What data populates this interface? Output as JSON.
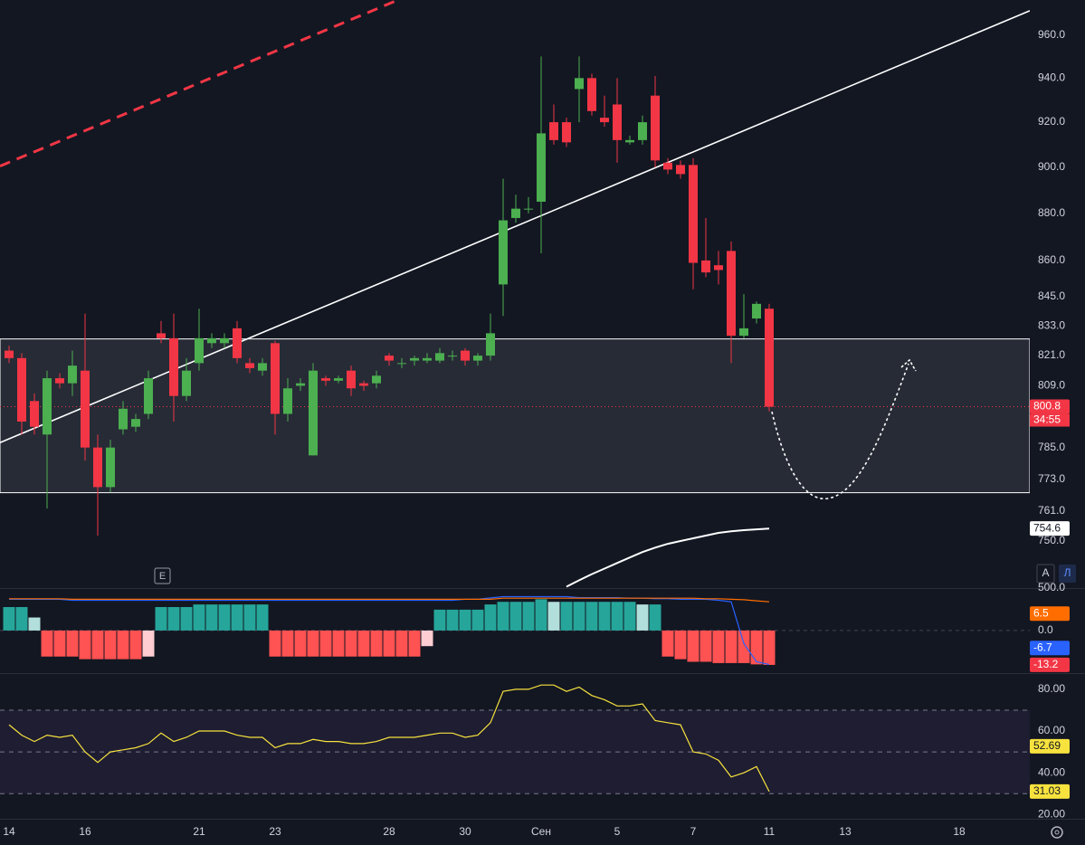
{
  "chart_data": [
    {
      "type": "candlestick",
      "xlim": [
        -0.714,
        80.571
      ],
      "xticks": [
        {
          "value": 0,
          "label": "14"
        },
        {
          "value": 6,
          "label": "16"
        },
        {
          "value": 15,
          "label": "21"
        },
        {
          "value": 21,
          "label": "23"
        },
        {
          "value": 30,
          "label": "28"
        },
        {
          "value": 36,
          "label": "30"
        },
        {
          "value": 42,
          "label": "Сен"
        },
        {
          "value": 48,
          "label": "5"
        },
        {
          "value": 54,
          "label": "7"
        },
        {
          "value": 60,
          "label": "11"
        },
        {
          "value": 66,
          "label": "13"
        },
        {
          "value": 75,
          "label": "18"
        }
      ],
      "ylim": [
        733,
        976.5
      ],
      "log_scale": true,
      "yticks": [
        {
          "value": 960,
          "label": "960.0"
        },
        {
          "value": 940,
          "label": "940.0"
        },
        {
          "value": 920,
          "label": "920.0"
        },
        {
          "value": 900,
          "label": "900.0"
        },
        {
          "value": 880,
          "label": "880.0"
        },
        {
          "value": 860,
          "label": "860.0"
        },
        {
          "value": 845,
          "label": "845.0"
        },
        {
          "value": 833,
          "label": "833.0"
        },
        {
          "value": 821,
          "label": "821.0"
        },
        {
          "value": 809,
          "label": "809.0"
        },
        {
          "value": 785,
          "label": "785.0"
        },
        {
          "value": 773,
          "label": "773.0"
        },
        {
          "value": 761,
          "label": "761.0"
        },
        {
          "value": 750,
          "label": "750.0"
        }
      ],
      "open": [
        823,
        820,
        803,
        790,
        812,
        810,
        815,
        785,
        770,
        792,
        793,
        798,
        830,
        828,
        805,
        818,
        826,
        826,
        832,
        818,
        815,
        826,
        798,
        809,
        782,
        812,
        811,
        815,
        810,
        810,
        821,
        818,
        819,
        819,
        819,
        821,
        823,
        819,
        821,
        850,
        878,
        882,
        885,
        920,
        920,
        935,
        940,
        922,
        928,
        911,
        912,
        932,
        902,
        901,
        901,
        860,
        858,
        864,
        829,
        836,
        840
      ],
      "high": [
        825,
        822,
        806,
        815,
        814,
        823,
        838,
        790,
        788,
        803,
        798,
        815,
        835,
        838,
        820,
        840,
        830,
        830,
        835,
        820,
        820,
        827,
        812,
        812,
        818,
        813,
        813,
        817,
        811,
        815,
        822,
        820,
        821,
        822,
        824,
        823,
        824,
        822,
        838,
        895,
        888,
        887,
        950,
        928,
        922,
        950,
        942,
        932,
        940,
        914,
        923,
        941,
        904,
        903,
        904,
        878,
        864,
        868,
        846,
        843,
        842
      ],
      "low": [
        818,
        790,
        790,
        762,
        808,
        805,
        780,
        752,
        768,
        790,
        791,
        796,
        826,
        795,
        803,
        815,
        824,
        824,
        818,
        814,
        813,
        790,
        795,
        807,
        782,
        809,
        810,
        805,
        807,
        808,
        817,
        816,
        817,
        818,
        818,
        819,
        817,
        817,
        819,
        837,
        876,
        880,
        863,
        910,
        909,
        920,
        923,
        918,
        902,
        910,
        910,
        900,
        897,
        895,
        848,
        853,
        850,
        818,
        828,
        834,
        799
      ],
      "close": [
        820,
        795,
        793,
        812,
        810,
        817,
        785,
        770,
        785,
        800,
        796,
        812,
        828,
        805,
        815,
        828,
        828,
        828,
        820,
        816,
        818,
        798,
        808,
        810,
        815,
        811,
        812,
        808,
        809,
        813,
        819,
        818,
        820,
        820,
        822,
        821,
        819,
        821,
        830,
        877,
        882,
        882,
        915,
        912,
        911,
        940,
        925,
        920,
        912,
        912,
        920,
        903,
        899,
        897,
        859,
        855,
        856,
        829,
        832,
        842,
        800.8
      ],
      "up_color": "#4caf50",
      "down_color": "#f23645",
      "last_price": 800.8,
      "countdown": "34:55",
      "moving_average": {
        "color": "#ffffff",
        "values": [
          null,
          null,
          null,
          null,
          null,
          null,
          null,
          null,
          null,
          null,
          null,
          null,
          null,
          null,
          null,
          null,
          null,
          null,
          null,
          null,
          null,
          null,
          null,
          null,
          null,
          null,
          null,
          null,
          null,
          null,
          null,
          null,
          null,
          null,
          null,
          null,
          null,
          null,
          null,
          null,
          null,
          null,
          null,
          null,
          733.5,
          735.8,
          738,
          740,
          742,
          744,
          746,
          747.6,
          749,
          750,
          751,
          752,
          753,
          753.6,
          754,
          754.3,
          754.6
        ]
      },
      "trendlines": [
        {
          "color": "#ffffff",
          "dashed": false,
          "x": [
            -0.714,
            80.571
          ],
          "y": [
            786.9,
            971.4
          ]
        },
        {
          "color": "#f23645",
          "dashed": true,
          "x": [
            -0.714,
            30.7
          ],
          "y": [
            900.5,
            976.5
          ]
        }
      ],
      "zone": {
        "x": [
          -0.714,
          80.571
        ],
        "y": [
          767.9,
          827.7
        ]
      },
      "event_marker": "E"
    },
    {
      "type": "histogram",
      "ylim": [
        -16,
        15.6
      ],
      "yticks": [
        {
          "value": 0,
          "label": "0.0"
        }
      ],
      "values": [
        9,
        9,
        5,
        -10,
        -10,
        -10,
        -11,
        -11,
        -11,
        -11,
        -11,
        -10,
        9,
        9,
        9,
        10,
        10,
        10,
        10,
        10,
        10,
        -10,
        -10,
        -10,
        -10,
        -10,
        -10,
        -10,
        -10,
        -10,
        -10,
        -10,
        -10,
        -6,
        8,
        8,
        8,
        8,
        10,
        11,
        11,
        11,
        12,
        11,
        11,
        11,
        11,
        11,
        11,
        11,
        10,
        10,
        -10,
        -11,
        -12,
        -12,
        -12.5,
        -12.5,
        -12.5,
        -13,
        -13.2
      ],
      "colors": {
        "up_strong": "#26a69a",
        "up_weak": "#b2dfdb",
        "down_strong": "#ff5252",
        "down_weak": "#ffcdd2"
      },
      "series": [
        {
          "color": "#2962ff",
          "values": [
            12,
            12,
            12,
            12,
            12,
            11.6,
            11.6,
            11.6,
            11.6,
            11.6,
            11.6,
            11.6,
            11.6,
            11.6,
            11.6,
            11.6,
            11.6,
            11.6,
            11.6,
            11.6,
            11.6,
            11.6,
            11.6,
            11.6,
            11.6,
            11.6,
            11.6,
            11.6,
            11.6,
            11.6,
            11.6,
            11.6,
            11.6,
            11.6,
            11.6,
            11.6,
            12,
            12,
            12.5,
            13,
            13,
            13,
            13,
            13,
            13,
            12.6,
            12.6,
            12.6,
            12.6,
            12.4,
            12.4,
            12.2,
            12.2,
            12,
            12,
            12,
            11.6,
            11,
            -5,
            -12,
            -13
          ]
        },
        {
          "color": "#ff6d00",
          "values": [
            12.2,
            12.2,
            12.2,
            12.2,
            12.2,
            12,
            12,
            12,
            12,
            12,
            12,
            12,
            12,
            12,
            12,
            12,
            12,
            12,
            12,
            12,
            12,
            12,
            12,
            12,
            12,
            12,
            12,
            12,
            12,
            12,
            12,
            12,
            12,
            12,
            12,
            12,
            12,
            12,
            12,
            12.4,
            12.4,
            12.4,
            12.4,
            12.4,
            12.4,
            12.4,
            12.4,
            12.4,
            12.4,
            12.4,
            12.4,
            12.4,
            12.4,
            12.4,
            12.4,
            12.2,
            12.2,
            12,
            11.8,
            11.4,
            11
          ]
        }
      ],
      "tags": [
        {
          "value": 6.5,
          "color": "#ff6d00"
        },
        {
          "value": -6.7,
          "color": "#2962ff"
        },
        {
          "value": -13.2,
          "color": "#f23645"
        }
      ],
      "clipped_label": "500.0"
    },
    {
      "type": "line",
      "ylim": [
        18,
        86
      ],
      "yticks": [
        {
          "value": 80,
          "label": "80.00"
        },
        {
          "value": 60,
          "label": "60.00"
        },
        {
          "value": 40,
          "label": "40.00"
        },
        {
          "value": 20,
          "label": "20.00"
        }
      ],
      "bands": [
        70,
        50,
        30
      ],
      "color": "#f7e23e",
      "values": [
        63,
        58,
        55,
        58,
        57,
        58,
        50,
        45,
        50,
        51,
        52,
        54,
        59,
        55,
        57,
        60,
        60,
        60,
        58,
        57,
        57,
        52,
        54,
        54,
        56,
        55,
        55,
        54,
        54,
        55,
        57,
        57,
        57,
        58,
        59,
        59,
        57,
        58,
        64,
        79,
        80,
        80,
        82,
        82,
        79,
        81,
        77,
        75,
        72,
        72,
        73,
        65,
        64,
        63,
        50,
        49,
        46,
        38,
        40,
        43,
        31.03
      ],
      "ma_last": 52.69
    }
  ],
  "ui": {
    "buttons": [
      "A",
      "Л"
    ]
  }
}
